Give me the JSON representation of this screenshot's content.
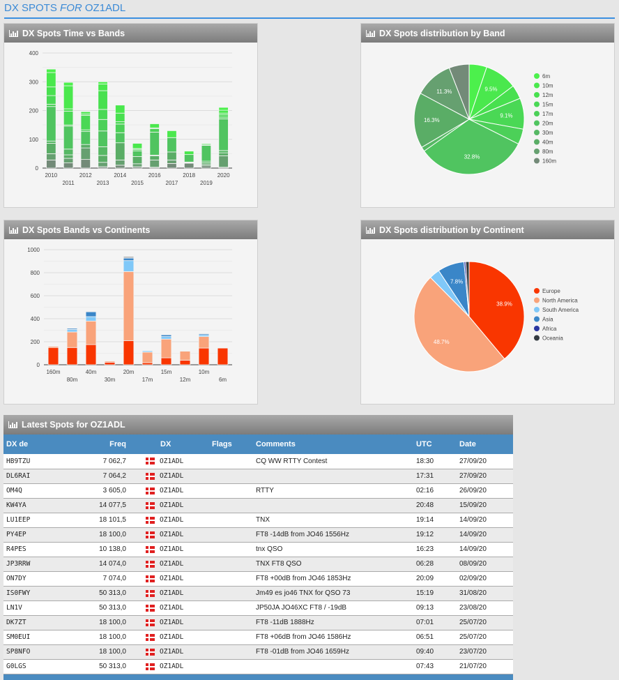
{
  "page": {
    "title_prefix": "DX SPOTS",
    "title_for": "FOR",
    "title_call": "OZ1ADL"
  },
  "panels": {
    "time_vs_bands": "DX Spots Time vs Bands",
    "dist_by_band": "DX Spots distribution by Band",
    "bands_vs_continents": "DX Spots Bands vs Continents",
    "dist_by_continent": "DX Spots distribution by Continent",
    "latest_spots": "Latest Spots for OZ1ADL"
  },
  "colors": {
    "title": "#3b8ad6",
    "table_header": "#4a8bc0",
    "bands": {
      "6m": "#4cf04c",
      "10m": "#4ae84d",
      "12m": "#48e04f",
      "15m": "#4ad855",
      "17m": "#4cd058",
      "20m": "#50c460",
      "30m": "#56b864",
      "40m": "#5aad66",
      "80m": "#66a070",
      "160m": "#738a78"
    },
    "continents": {
      "Europe": "#f93600",
      "North America": "#f9a37a",
      "South America": "#80c8f8",
      "Asia": "#3a86c8",
      "Africa": "#2a36a0",
      "Oceania": "#333a40"
    }
  },
  "chart_data": [
    {
      "type": "bar",
      "stacked": true,
      "title": "DX Spots Time vs Bands",
      "xlabel": "",
      "ylabel": "",
      "ylim": [
        0,
        400
      ],
      "yticks": [
        0,
        100,
        200,
        300,
        400
      ],
      "grid": true,
      "categories": [
        "2010",
        "2011",
        "2012",
        "2013",
        "2014",
        "2015",
        "2016",
        "2017",
        "2018",
        "2019",
        "2020"
      ],
      "series": [
        {
          "name": "160m",
          "values": [
            28,
            18,
            30,
            5,
            10,
            5,
            3,
            16,
            17,
            8,
            3
          ]
        },
        {
          "name": "80m",
          "values": [
            22,
            16,
            40,
            15,
            18,
            10,
            25,
            12,
            2,
            5,
            40
          ]
        },
        {
          "name": "40m",
          "values": [
            36,
            12,
            12,
            24,
            60,
            25,
            15,
            28,
            0,
            5,
            10
          ]
        },
        {
          "name": "30m",
          "values": [
            8,
            20,
            0,
            30,
            0,
            0,
            2,
            0,
            2,
            6,
            8
          ]
        },
        {
          "name": "20m",
          "values": [
            120,
            80,
            45,
            55,
            35,
            20,
            80,
            50,
            26,
            55,
            110
          ]
        },
        {
          "name": "17m",
          "values": [
            8,
            4,
            6,
            40,
            30,
            5,
            12,
            0,
            0,
            0,
            6
          ]
        },
        {
          "name": "15m",
          "values": [
            30,
            48,
            50,
            35,
            8,
            0,
            3,
            0,
            0,
            3,
            8
          ]
        },
        {
          "name": "12m",
          "values": [
            30,
            8,
            5,
            65,
            30,
            3,
            0,
            0,
            0,
            0,
            6
          ]
        },
        {
          "name": "10m",
          "values": [
            50,
            80,
            8,
            23,
            28,
            18,
            14,
            24,
            12,
            3,
            10
          ]
        },
        {
          "name": "6m",
          "values": [
            12,
            12,
            2,
            8,
            0,
            0,
            0,
            0,
            0,
            0,
            10
          ]
        }
      ]
    },
    {
      "type": "pie",
      "title": "DX Spots distribution by Band",
      "legend": "right",
      "labels": [
        "6m",
        "10m",
        "12m",
        "15m",
        "17m",
        "20m",
        "30m",
        "40m",
        "80m",
        "160m"
      ],
      "values": [
        5.2,
        9.5,
        4.1,
        9.1,
        4.5,
        32.8,
        1.3,
        16.3,
        11.3,
        5.9
      ],
      "shown_labels": [
        "",
        "9.5%",
        "",
        "9.1%",
        "",
        "32.8%",
        "",
        "16.3%",
        "11.3%",
        ""
      ]
    },
    {
      "type": "bar",
      "stacked": true,
      "title": "DX Spots Bands vs Continents",
      "xlabel": "",
      "ylabel": "",
      "ylim": [
        0,
        1000
      ],
      "yticks": [
        0,
        200,
        400,
        600,
        800,
        1000
      ],
      "grid": true,
      "categories": [
        "160m",
        "80m",
        "40m",
        "30m",
        "20m",
        "17m",
        "15m",
        "12m",
        "10m",
        "6m"
      ],
      "series": [
        {
          "name": "Europe",
          "values": [
            150,
            150,
            175,
            22,
            210,
            18,
            60,
            40,
            145,
            145
          ]
        },
        {
          "name": "North America",
          "values": [
            10,
            135,
            205,
            10,
            600,
            92,
            163,
            78,
            100,
            0
          ]
        },
        {
          "name": "South America",
          "values": [
            3,
            22,
            38,
            5,
            95,
            12,
            22,
            0,
            15,
            0
          ]
        },
        {
          "name": "Asia",
          "values": [
            3,
            10,
            42,
            3,
            22,
            3,
            15,
            3,
            10,
            3
          ]
        },
        {
          "name": "Africa",
          "values": [
            0,
            0,
            0,
            0,
            3,
            0,
            0,
            0,
            0,
            0
          ]
        },
        {
          "name": "Oceania",
          "values": [
            2,
            3,
            5,
            2,
            8,
            2,
            3,
            2,
            5,
            2
          ]
        }
      ]
    },
    {
      "type": "pie",
      "title": "DX Spots distribution by Continent",
      "legend": "right",
      "labels": [
        "Europe",
        "North America",
        "South America",
        "Asia",
        "Africa",
        "Oceania"
      ],
      "values": [
        38.9,
        48.7,
        3.1,
        7.8,
        0.5,
        1.0
      ],
      "shown_labels": [
        "38.9%",
        "48.7%",
        "",
        "7.8%",
        "",
        ""
      ]
    }
  ],
  "table": {
    "headers": [
      "DX de",
      "Freq",
      "DX",
      "Flags",
      "Comments",
      "UTC",
      "Date"
    ],
    "rows": [
      {
        "de": "HB9TZU",
        "freq": "7 062,7",
        "dx": "OZ1ADL",
        "flags": "",
        "comment": "CQ WW RTTY Contest",
        "utc": "18:30",
        "date": "27/09/20"
      },
      {
        "de": "DL6RAI",
        "freq": "7 064,2",
        "dx": "OZ1ADL",
        "flags": "",
        "comment": "",
        "utc": "17:31",
        "date": "27/09/20"
      },
      {
        "de": "OM4Q",
        "freq": "3 605,0",
        "dx": "OZ1ADL",
        "flags": "",
        "comment": "RTTY",
        "utc": "02:16",
        "date": "26/09/20"
      },
      {
        "de": "KW4YA",
        "freq": "14 077,5",
        "dx": "OZ1ADL",
        "flags": "",
        "comment": "",
        "utc": "20:48",
        "date": "15/09/20"
      },
      {
        "de": "LU1EEP",
        "freq": "18 101,5",
        "dx": "OZ1ADL",
        "flags": "",
        "comment": "TNX",
        "utc": "19:14",
        "date": "14/09/20"
      },
      {
        "de": "PY4EP",
        "freq": "18 100,0",
        "dx": "OZ1ADL",
        "flags": "",
        "comment": "FT8 -14dB from JO46 1556Hz",
        "utc": "19:12",
        "date": "14/09/20"
      },
      {
        "de": "R4PES",
        "freq": "10 138,0",
        "dx": "OZ1ADL",
        "flags": "",
        "comment": "tnx QSO",
        "utc": "16:23",
        "date": "14/09/20"
      },
      {
        "de": "JP3RRW",
        "freq": "14 074,0",
        "dx": "OZ1ADL",
        "flags": "",
        "comment": "TNX FT8 QSO",
        "utc": "06:28",
        "date": "08/09/20"
      },
      {
        "de": "ON7DY",
        "freq": "7 074,0",
        "dx": "OZ1ADL",
        "flags": "",
        "comment": "FT8 +00dB from JO46 1853Hz",
        "utc": "20:09",
        "date": "02/09/20"
      },
      {
        "de": "IS0FWY",
        "freq": "50 313,0",
        "dx": "OZ1ADL",
        "flags": "",
        "comment": "Jm49 es jo46 TNX for QSO 73",
        "utc": "15:19",
        "date": "31/08/20"
      },
      {
        "de": "LN1V",
        "freq": "50 313,0",
        "dx": "OZ1ADL",
        "flags": "",
        "comment": "JP50JA JO46XC FT8 / -19dB",
        "utc": "09:13",
        "date": "23/08/20"
      },
      {
        "de": "DK7ZT",
        "freq": "18 100,0",
        "dx": "OZ1ADL",
        "flags": "",
        "comment": "FT8 -11dB 1888Hz",
        "utc": "07:01",
        "date": "25/07/20"
      },
      {
        "de": "SM0EUI",
        "freq": "18 100,0",
        "dx": "OZ1ADL",
        "flags": "",
        "comment": "FT8 +06dB from JO46 1586Hz",
        "utc": "06:51",
        "date": "25/07/20"
      },
      {
        "de": "SP8NFO",
        "freq": "18 100,0",
        "dx": "OZ1ADL",
        "flags": "",
        "comment": "FT8 -01dB from JO46 1659Hz",
        "utc": "09:40",
        "date": "23/07/20"
      },
      {
        "de": "G0LGS",
        "freq": "50 313,0",
        "dx": "OZ1ADL",
        "flags": "",
        "comment": "",
        "utc": "07:43",
        "date": "21/07/20"
      }
    ]
  }
}
